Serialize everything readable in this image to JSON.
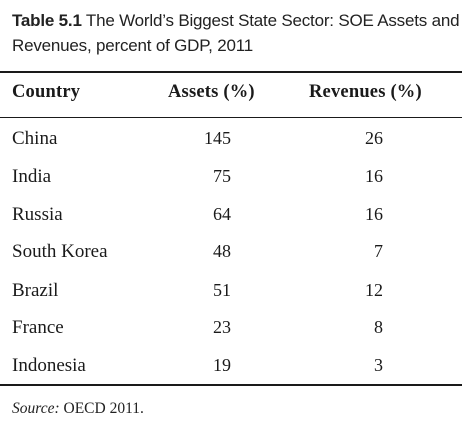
{
  "caption": {
    "label": "Table 5.1",
    "text": "The World’s Biggest State Sector: SOE Assets and Revenues, percent of GDP, 2011"
  },
  "table": {
    "headers": {
      "country": "Country",
      "assets": "Assets (%)",
      "revenues": "Revenues (%)"
    },
    "rows": [
      {
        "country": "China",
        "assets": "145",
        "revenues": "26"
      },
      {
        "country": "India",
        "assets": "75",
        "revenues": "16"
      },
      {
        "country": "Russia",
        "assets": "64",
        "revenues": "16"
      },
      {
        "country": "South Korea",
        "assets": "48",
        "revenues": "7"
      },
      {
        "country": "Brazil",
        "assets": "51",
        "revenues": "12"
      },
      {
        "country": "France",
        "assets": "23",
        "revenues": "8"
      },
      {
        "country": "Indonesia",
        "assets": "19",
        "revenues": "3"
      }
    ]
  },
  "source": {
    "label": "Source:",
    "text": "OECD 2011."
  }
}
